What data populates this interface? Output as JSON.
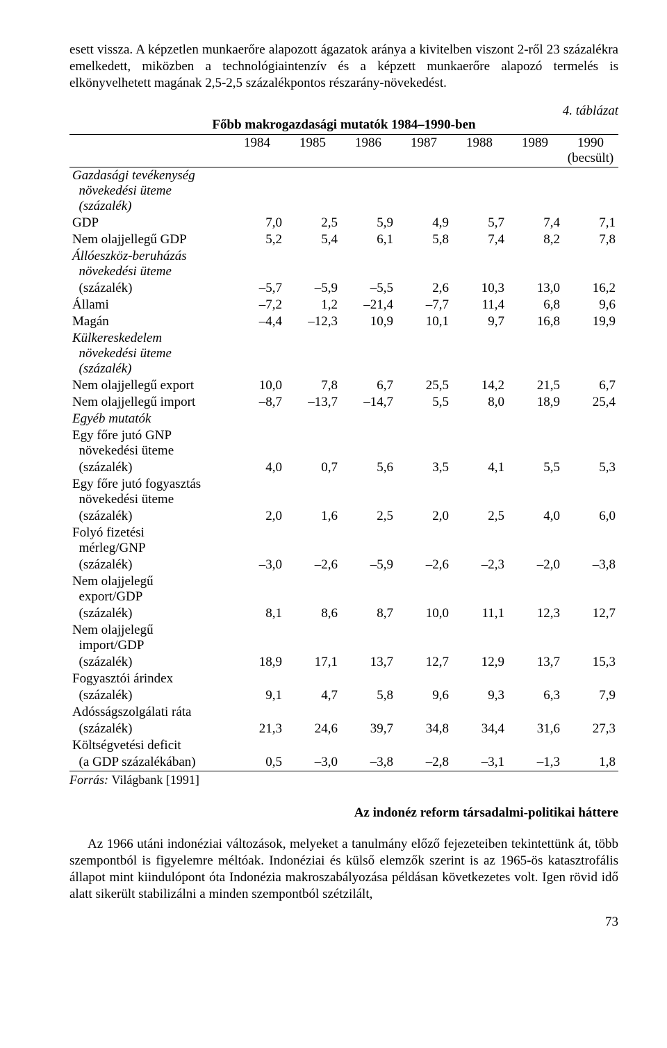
{
  "paragraphs": {
    "intro": "esett vissza. A képzetlen munkaerőre alapozott ágazatok aránya a kivitelben viszont 2-ről 23 százalékra emelkedett, miközben a technológiaintenzív és a képzett munkaerőre alapozó termelés is elkönyvelhetett magának 2,5-2,5 százalékpontos részarány-növekedést.",
    "body": "Az 1966 utáni indonéziai változások, melyeket a tanulmány előző fejezeteiben tekintettünk át, több szempontból is figyelemre méltóak. Indonéziai és külső elemzők szerint is az 1965-ös katasztrofális állapot mint kiindulópont óta Indonézia makroszabályozása példásan következetes volt. Igen rövid idő alatt sikerült stabilizálni a minden szempontból szétzilált,"
  },
  "table": {
    "caption_right": "4. táblázat",
    "title": "Főbb makrogazdasági mutatók 1984–1990-ben",
    "columns": [
      "",
      "1984",
      "1985",
      "1986",
      "1987",
      "1988",
      "1989",
      "1990\n(becsült)"
    ],
    "rows": [
      {
        "label": "Gazdasági tevékenység\n  növekedési üteme\n  (százalék)",
        "italic": true,
        "values": [
          "",
          "",
          "",
          "",
          "",
          "",
          ""
        ]
      },
      {
        "label": "GDP",
        "values": [
          "7,0",
          "2,5",
          "5,9",
          "4,9",
          "5,7",
          "7,4",
          "7,1"
        ]
      },
      {
        "label": "Nem olajjellegű GDP",
        "values": [
          "5,2",
          "5,4",
          "6,1",
          "5,8",
          "7,4",
          "8,2",
          "7,8"
        ]
      },
      {
        "label": "Állóeszköz-beruházás\n  növekedési üteme",
        "italic": true,
        "values": [
          "",
          "",
          "",
          "",
          "",
          "",
          ""
        ]
      },
      {
        "label": "  (százalék)",
        "values": [
          "–5,7",
          "–5,9",
          "–5,5",
          "2,6",
          "10,3",
          "13,0",
          "16,2"
        ]
      },
      {
        "label": "Állami",
        "values": [
          "–7,2",
          "1,2",
          "–21,4",
          "–7,7",
          "11,4",
          "6,8",
          "9,6"
        ]
      },
      {
        "label": "Magán",
        "values": [
          "–4,4",
          "–12,3",
          "10,9",
          "10,1",
          "9,7",
          "16,8",
          "19,9"
        ]
      },
      {
        "label": "Külkereskedelem\n  növekedési üteme\n  (százalék)",
        "italic": true,
        "values": [
          "",
          "",
          "",
          "",
          "",
          "",
          ""
        ]
      },
      {
        "label": "Nem olajjellegű export",
        "values": [
          "10,0",
          "7,8",
          "6,7",
          "25,5",
          "14,2",
          "21,5",
          "6,7"
        ]
      },
      {
        "label": "Nem olajjellegű import",
        "values": [
          "–8,7",
          "–13,7",
          "–14,7",
          "5,5",
          "8,0",
          "18,9",
          "25,4"
        ]
      },
      {
        "label": "Egyéb mutatók",
        "italic": true,
        "values": [
          "",
          "",
          "",
          "",
          "",
          "",
          ""
        ]
      },
      {
        "label": "Egy főre jutó GNP\n  növekedési üteme",
        "values": [
          "",
          "",
          "",
          "",
          "",
          "",
          ""
        ]
      },
      {
        "label": "  (százalék)",
        "values": [
          "4,0",
          "0,7",
          "5,6",
          "3,5",
          "4,1",
          "5,5",
          "5,3"
        ]
      },
      {
        "label": "Egy főre jutó fogyasztás\n  növekedési üteme",
        "values": [
          "",
          "",
          "",
          "",
          "",
          "",
          ""
        ]
      },
      {
        "label": "  (százalék)",
        "values": [
          "2,0",
          "1,6",
          "2,5",
          "2,0",
          "2,5",
          "4,0",
          "6,0"
        ]
      },
      {
        "label": "Folyó fizetési\n  mérleg/GNP",
        "values": [
          "",
          "",
          "",
          "",
          "",
          "",
          ""
        ]
      },
      {
        "label": "  (százalék)",
        "values": [
          "–3,0",
          "–2,6",
          "–5,9",
          "–2,6",
          "–2,3",
          "–2,0",
          "–3,8"
        ]
      },
      {
        "label": "Nem olajjelegű\n  export/GDP",
        "values": [
          "",
          "",
          "",
          "",
          "",
          "",
          ""
        ]
      },
      {
        "label": "  (százalék)",
        "values": [
          "8,1",
          "8,6",
          "8,7",
          "10,0",
          "11,1",
          "12,3",
          "12,7"
        ]
      },
      {
        "label": "Nem olajjelegű\n  import/GDP",
        "values": [
          "",
          "",
          "",
          "",
          "",
          "",
          ""
        ]
      },
      {
        "label": "  (százalék)",
        "values": [
          "18,9",
          "17,1",
          "13,7",
          "12,7",
          "12,9",
          "13,7",
          "15,3"
        ]
      },
      {
        "label": "Fogyasztói árindex",
        "values": [
          "",
          "",
          "",
          "",
          "",
          "",
          ""
        ]
      },
      {
        "label": "  (százalék)",
        "values": [
          "9,1",
          "4,7",
          "5,8",
          "9,6",
          "9,3",
          "6,3",
          "7,9"
        ]
      },
      {
        "label": "Adósságszolgálati ráta",
        "values": [
          "",
          "",
          "",
          "",
          "",
          "",
          ""
        ]
      },
      {
        "label": "  (százalék)",
        "values": [
          "21,3",
          "24,6",
          "39,7",
          "34,8",
          "34,4",
          "31,6",
          "27,3"
        ]
      },
      {
        "label": "Költségvetési deficit",
        "values": [
          "",
          "",
          "",
          "",
          "",
          "",
          ""
        ]
      },
      {
        "label": "  (a GDP százalékában)",
        "values": [
          "0,5",
          "–3,0",
          "–3,8",
          "–2,8",
          "–3,1",
          "–1,3",
          "1,8"
        ]
      }
    ]
  },
  "source": {
    "italic_part": "Forrás: ",
    "normal_part": "Világbank [1991]"
  },
  "section_heading": "Az indonéz reform társadalmi-politikai háttere",
  "page_number": "73"
}
